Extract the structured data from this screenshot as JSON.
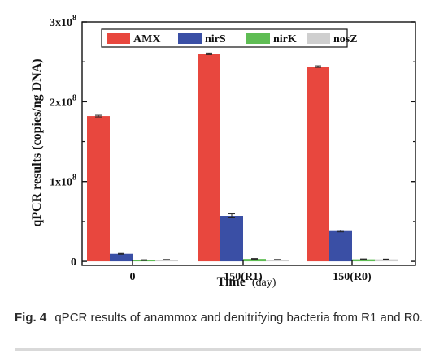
{
  "chart_data": {
    "type": "bar",
    "title": "",
    "xlabel": "Time",
    "xlabel_unit": "(day)",
    "ylabel": "qPCR results (copies/ng DNA)",
    "categories": [
      "0",
      "150(R1)",
      "150(R0)"
    ],
    "series": [
      {
        "name": "AMX",
        "color": "#e8473e",
        "values": [
          182000000,
          260000000,
          244000000
        ],
        "errors": [
          1000000,
          1000000,
          1000000
        ]
      },
      {
        "name": "nirS",
        "color": "#3a4fa5",
        "values": [
          9500000,
          57000000,
          38000000
        ],
        "errors": [
          500000,
          2500000,
          1000000
        ]
      },
      {
        "name": "nirK",
        "color": "#5fbd54",
        "values": [
          1500000,
          3000000,
          2500000
        ],
        "errors": [
          500000,
          500000,
          500000
        ]
      },
      {
        "name": "nosZ",
        "color": "#cfcfcf",
        "values": [
          2000000,
          2000000,
          2500000
        ],
        "errors": [
          300000,
          300000,
          300000
        ]
      }
    ],
    "ylim": [
      -5000000,
      300000000
    ],
    "yticks": [
      {
        "value": 0,
        "mantissa": "0",
        "exponent": ""
      },
      {
        "value": 100000000,
        "mantissa": "1x10",
        "exponent": "8"
      },
      {
        "value": 200000000,
        "mantissa": "2x10",
        "exponent": "8"
      },
      {
        "value": 300000000,
        "mantissa": "3x10",
        "exponent": "8"
      }
    ],
    "legend_position": "top",
    "grid": false
  },
  "caption": {
    "label": "Fig. 4",
    "text": "qPCR results of anammox and denitrifying bacteria from R1 and R0."
  }
}
